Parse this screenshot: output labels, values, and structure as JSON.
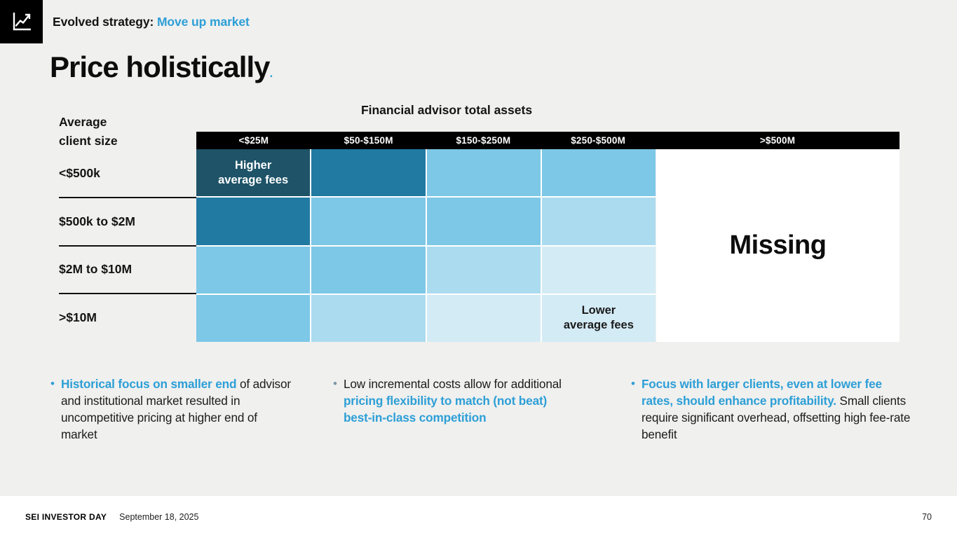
{
  "slide": {
    "kicker_prefix": "Evolved strategy: ",
    "kicker_highlight": "Move up market",
    "title": "Price holistically",
    "title_period": "."
  },
  "matrix": {
    "title": "Financial advisor total assets",
    "axis_label": "Average\nclient size",
    "columns": [
      "<$25M",
      "$50-$150M",
      "$150-$250M",
      "$250-$500M",
      ">$500M"
    ],
    "rows": [
      "<$500k",
      "$500k to $2M",
      "$2M to $10M",
      ">$10M"
    ],
    "palette": {
      "L4": "#1E5368",
      "L3": "#217AA2",
      "L2": "#7DC7E7",
      "L1": "#ABDBEF",
      "L0": "#D3EBF5"
    },
    "cells": [
      [
        "L4",
        "L3",
        "L2",
        "L2"
      ],
      [
        "L3",
        "L2",
        "L2",
        "L1"
      ],
      [
        "L2",
        "L2",
        "L1",
        "L0"
      ],
      [
        "L2",
        "L1",
        "L0",
        "L0"
      ]
    ],
    "cell_labels": [
      {
        "row": 0,
        "col": 0,
        "text": "Higher\naverage fees",
        "color": "#FFFFFF"
      },
      {
        "row": 3,
        "col": 3,
        "text": "Lower\naverage fees",
        "color": "#1A1A1A"
      }
    ],
    "missing_label": "Missing"
  },
  "bullets": [
    {
      "dot_color": "#2D9FD6",
      "segments": [
        {
          "text": "Historical focus on smaller end",
          "accent": true
        },
        {
          "text": " of advisor and institutional market resulted in uncompetitive pricing at higher end of market",
          "accent": false
        }
      ]
    },
    {
      "dot_color": "#7E99A8",
      "segments": [
        {
          "text": "Low incremental costs allow for additional ",
          "accent": false
        },
        {
          "text": "pricing flexibility to match (not beat) best-in-class competition",
          "accent": true
        }
      ]
    },
    {
      "dot_color": "#2D9FD6",
      "segments": [
        {
          "text": "Focus with larger clients, even at lower fee rates, should enhance profitability.",
          "accent": true
        },
        {
          "text": " Small clients require significant overhead, offsetting high fee-rate benefit",
          "accent": false
        }
      ]
    }
  ],
  "footer": {
    "brand": "SEI INVESTOR DAY",
    "date": "September 18, 2025",
    "page": "70"
  },
  "colors": {
    "accent": "#2D9FD6",
    "background": "#F0F0EF",
    "header_bar": "#000000"
  }
}
